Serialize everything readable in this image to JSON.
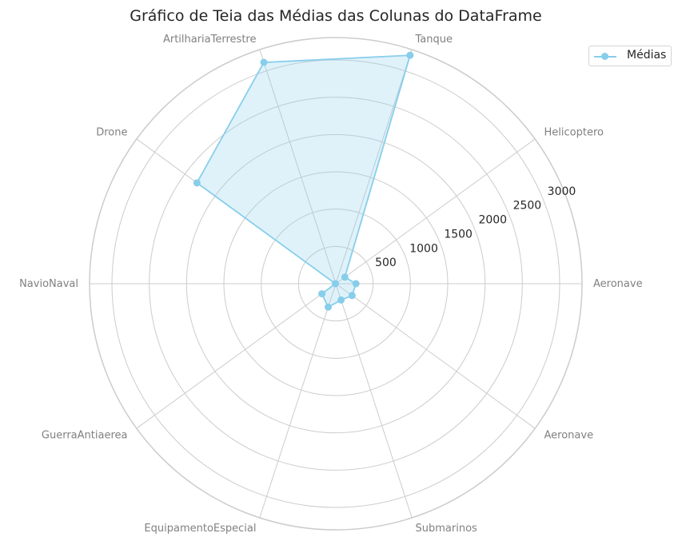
{
  "chart_data": {
    "type": "radar",
    "title": "Gráfico de Teia das Médias das Colunas do DataFrame",
    "categories": [
      "Aeronave",
      "Helicoptero",
      "Tanque",
      "ArtilhariaTerrestre",
      "Drone",
      "NavioNaval",
      "GuerraAntiaerea",
      "EquipamentoEspecial",
      "Submarinos",
      "Aeronave"
    ],
    "series": [
      {
        "name": "Médias",
        "color": "#87CEEB",
        "fill_color": "#87CEEB",
        "values": [
          270,
          150,
          3220,
          3120,
          2300,
          5,
          230,
          330,
          230,
          270
        ]
      }
    ],
    "r_ticks": [
      500,
      1000,
      1500,
      2000,
      2500,
      3000
    ],
    "r_tick_labels": [
      "500",
      "1000",
      "1500",
      "2000",
      "2500",
      "3000"
    ],
    "rlim": [
      0,
      3300
    ],
    "grid": true,
    "legend_position": "top-right"
  }
}
